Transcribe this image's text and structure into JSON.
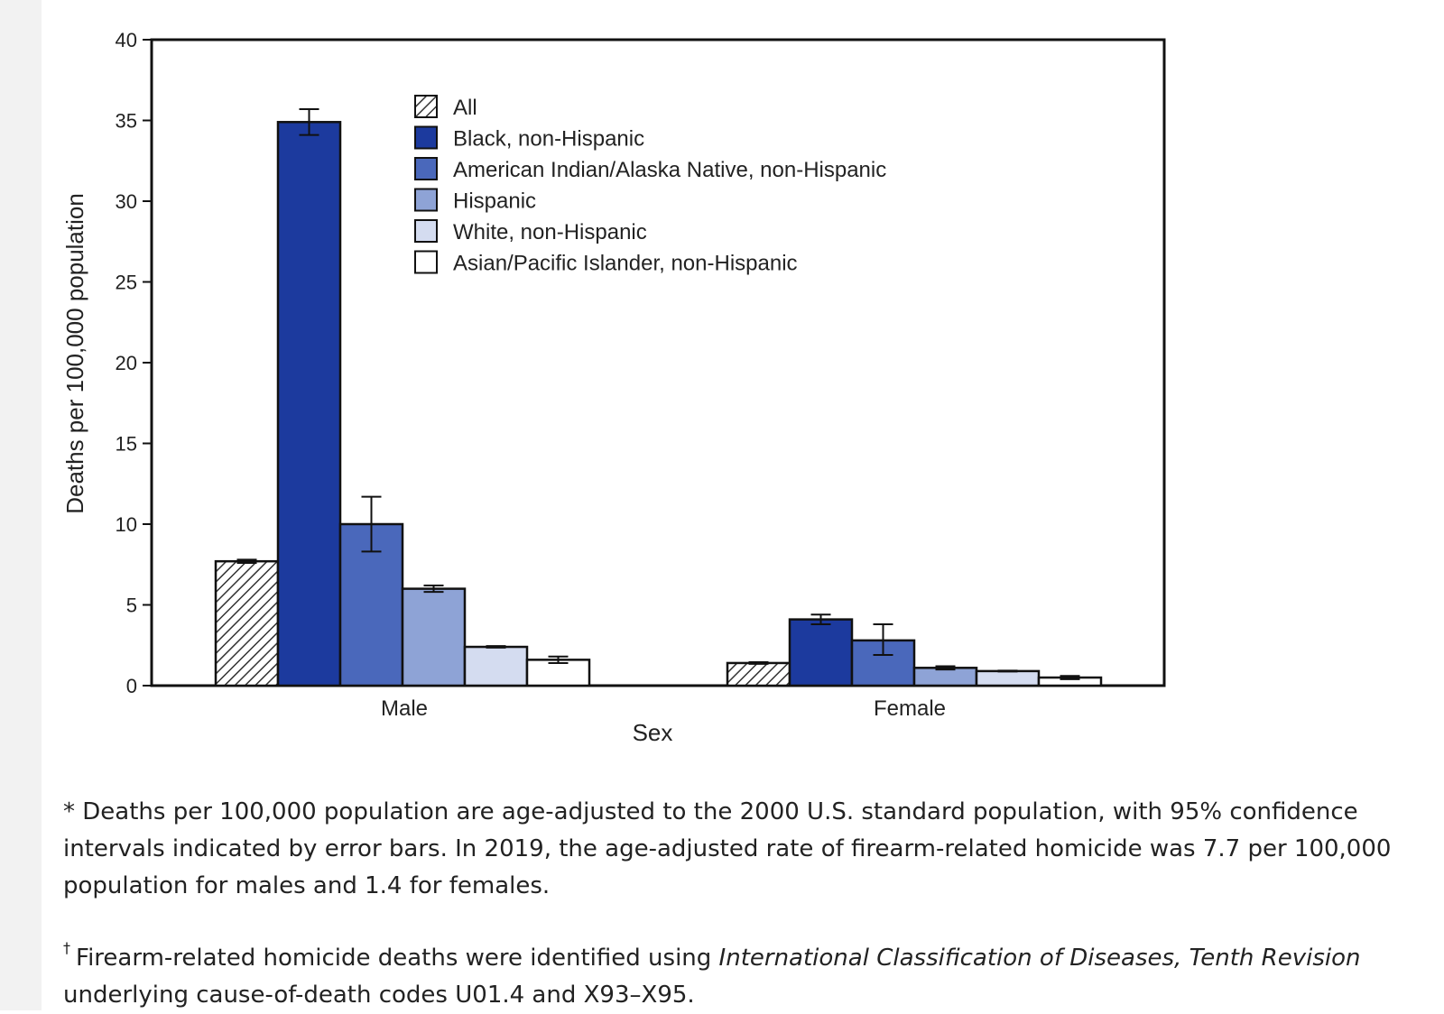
{
  "chart_data": {
    "type": "bar",
    "xlabel": "Sex",
    "ylabel": "Deaths per 100,000 population",
    "ylim": [
      0,
      40
    ],
    "yticks": [
      0,
      5,
      10,
      15,
      20,
      25,
      30,
      35,
      40
    ],
    "categories": [
      "Male",
      "Female"
    ],
    "legend_position": "top-center",
    "series": [
      {
        "name": "All",
        "values": [
          7.7,
          1.4
        ],
        "ci_low": [
          7.6,
          1.35
        ],
        "ci_high": [
          7.8,
          1.45
        ],
        "color": "#ffffff",
        "pattern": "hatch"
      },
      {
        "name": "Black, non-Hispanic",
        "values": [
          34.9,
          4.1
        ],
        "ci_low": [
          34.1,
          3.8
        ],
        "ci_high": [
          35.7,
          4.4
        ],
        "color": "#1c3a9e"
      },
      {
        "name": "American Indian/Alaska Native, non-Hispanic",
        "values": [
          10.0,
          2.8
        ],
        "ci_low": [
          8.3,
          1.9
        ],
        "ci_high": [
          11.7,
          3.8
        ],
        "color": "#4a68bb"
      },
      {
        "name": "Hispanic",
        "values": [
          6.0,
          1.1
        ],
        "ci_low": [
          5.8,
          1.0
        ],
        "ci_high": [
          6.2,
          1.2
        ],
        "color": "#8ea3d6"
      },
      {
        "name": "White, non-Hispanic",
        "values": [
          2.4,
          0.9
        ],
        "ci_low": [
          2.35,
          0.87
        ],
        "ci_high": [
          2.45,
          0.93
        ],
        "color": "#d4dcf0"
      },
      {
        "name": "Asian/Pacific Islander, non-Hispanic",
        "values": [
          1.6,
          0.5
        ],
        "ci_low": [
          1.4,
          0.4
        ],
        "ci_high": [
          1.8,
          0.6
        ],
        "color": "#ffffff"
      }
    ]
  },
  "footnotes": {
    "note1": "* Deaths per 100,000 population are age-adjusted to the 2000 U.S. standard population, with 95% confidence intervals indicated by error bars. In 2019, the age-adjusted rate of firearm-related homicide was 7.7 per 100,000 population for males and 1.4 for females.",
    "note2_marker": "†",
    "note2_before": "Firearm-related homicide deaths were identified using ",
    "note2_italic": "International Classification of Diseases, Tenth Revision",
    "note2_after": " underlying cause-of-death codes U01.4 and X93–X95."
  }
}
